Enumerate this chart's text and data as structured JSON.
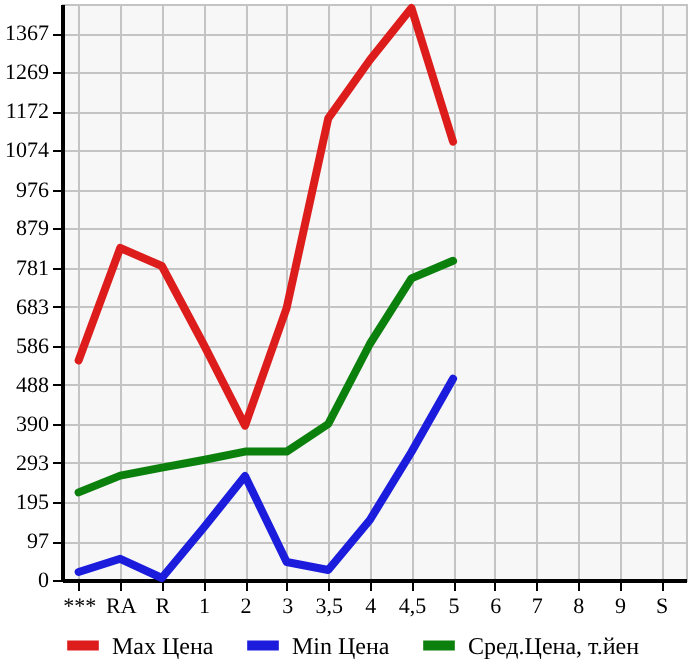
{
  "chart_data": {
    "type": "line",
    "categories": [
      "***",
      "RA",
      "R",
      "1",
      "2",
      "3",
      "3,5",
      "4",
      "4,5",
      "5",
      "6",
      "7",
      "8",
      "9",
      "S"
    ],
    "series": [
      {
        "name": "Max Цена",
        "color": "#dd1c1c",
        "values": [
          549,
          830,
          785,
          590,
          386,
          680,
          1154,
          1300,
          1430,
          1096,
          null,
          null,
          null,
          null,
          null
        ]
      },
      {
        "name": "Min Цена",
        "color": "#1c1cdd",
        "values": [
          20,
          53,
          5,
          130,
          260,
          45,
          25,
          150,
          320,
          503,
          null,
          null,
          null,
          null,
          null
        ]
      },
      {
        "name": "Сред.Цена, т.йен",
        "color": "#0c800c",
        "values": [
          219,
          261,
          281,
          300,
          321,
          321,
          390,
          590,
          754,
          798,
          null,
          null,
          null,
          null,
          null
        ]
      }
    ],
    "ylim": [
      0,
      1440
    ],
    "yticks": [
      0,
      97,
      195,
      293,
      390,
      488,
      586,
      683,
      781,
      879,
      976,
      1074,
      1172,
      1269,
      1367
    ],
    "grid": true,
    "legend": "bottom",
    "marker": "none",
    "line_style": "solid"
  }
}
